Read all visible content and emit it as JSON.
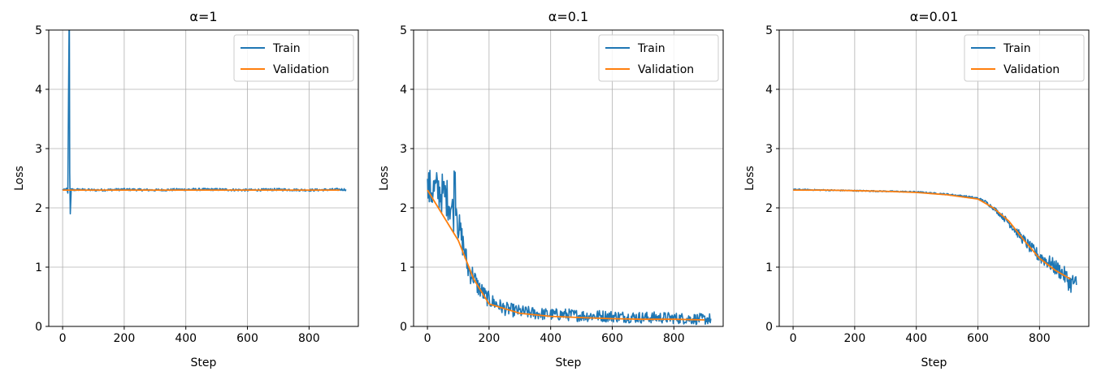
{
  "colors": {
    "train": "#1f77b4",
    "validation": "#ff7f0e",
    "grid": "#b0b0b0"
  },
  "chart_data": [
    {
      "type": "line",
      "title": "α=1",
      "xlabel": "Step",
      "ylabel": "Loss",
      "xlim": [
        -45,
        960
      ],
      "ylim": [
        0,
        5
      ],
      "xticks": [
        0,
        200,
        400,
        600,
        800
      ],
      "yticks": [
        0,
        1,
        2,
        3,
        4,
        5
      ],
      "grid": true,
      "legend": "top-right",
      "series": [
        {
          "name": "Train",
          "x": [
            0,
            5,
            10,
            14,
            17,
            19,
            21,
            22,
            23,
            25,
            28,
            35,
            50,
            100,
            200,
            300,
            400,
            500,
            600,
            700,
            800,
            900,
            920
          ],
          "y": [
            2.31,
            2.3,
            2.31,
            2.32,
            2.25,
            3.8,
            5.0,
            5.0,
            2.6,
            1.9,
            2.32,
            2.3,
            2.31,
            2.3,
            2.31,
            2.3,
            2.31,
            2.31,
            2.3,
            2.31,
            2.3,
            2.31,
            2.31
          ]
        },
        {
          "name": "Validation",
          "x": [
            0,
            100,
            200,
            300,
            400,
            500,
            600,
            700,
            800,
            900
          ],
          "y": [
            2.3,
            2.3,
            2.3,
            2.3,
            2.3,
            2.3,
            2.3,
            2.3,
            2.3,
            2.3
          ]
        }
      ]
    },
    {
      "type": "line",
      "title": "α=0.1",
      "xlabel": "Step",
      "ylabel": "Loss",
      "xlim": [
        -45,
        960
      ],
      "ylim": [
        0,
        5
      ],
      "xticks": [
        0,
        200,
        400,
        600,
        800
      ],
      "yticks": [
        0,
        1,
        2,
        3,
        4,
        5
      ],
      "grid": true,
      "legend": "top-right",
      "series": [
        {
          "name": "Train",
          "x": [
            0,
            20,
            40,
            60,
            75,
            85,
            88,
            92,
            100,
            110,
            120,
            130,
            140,
            150,
            160,
            175,
            190,
            200,
            250,
            300,
            350,
            400,
            450,
            500,
            550,
            600,
            650,
            700,
            750,
            800,
            850,
            900,
            920
          ],
          "y": [
            2.31,
            2.3,
            2.28,
            2.2,
            2.05,
            1.9,
            2.85,
            2.2,
            1.7,
            1.5,
            1.3,
            1.0,
            0.9,
            0.85,
            0.7,
            0.6,
            0.5,
            0.45,
            0.3,
            0.25,
            0.22,
            0.2,
            0.2,
            0.18,
            0.18,
            0.17,
            0.16,
            0.15,
            0.15,
            0.14,
            0.13,
            0.12,
            0.13
          ]
        },
        {
          "name": "Validation",
          "x": [
            0,
            100,
            150,
            200,
            300,
            400,
            500,
            600,
            700,
            800,
            900
          ],
          "y": [
            2.3,
            1.45,
            0.8,
            0.38,
            0.22,
            0.17,
            0.15,
            0.13,
            0.12,
            0.12,
            0.11
          ]
        }
      ]
    },
    {
      "type": "line",
      "title": "α=0.01",
      "xlabel": "Step",
      "ylabel": "Loss",
      "xlim": [
        -45,
        960
      ],
      "ylim": [
        0,
        5
      ],
      "xticks": [
        0,
        200,
        400,
        600,
        800
      ],
      "yticks": [
        0,
        1,
        2,
        3,
        4,
        5
      ],
      "grid": true,
      "legend": "top-right",
      "series": [
        {
          "name": "Train",
          "x": [
            0,
            100,
            200,
            300,
            400,
            450,
            500,
            550,
            600,
            625,
            650,
            675,
            700,
            725,
            750,
            775,
            800,
            825,
            850,
            875,
            890,
            900,
            910,
            920
          ],
          "y": [
            2.31,
            2.3,
            2.29,
            2.28,
            2.27,
            2.25,
            2.23,
            2.2,
            2.16,
            2.1,
            2.0,
            1.88,
            1.75,
            1.6,
            1.45,
            1.3,
            1.18,
            1.1,
            1.0,
            0.9,
            0.8,
            0.72,
            0.75,
            0.7
          ]
        },
        {
          "name": "Validation",
          "x": [
            0,
            100,
            200,
            300,
            400,
            500,
            600,
            650,
            700,
            750,
            800,
            850,
            900
          ],
          "y": [
            2.3,
            2.3,
            2.29,
            2.28,
            2.26,
            2.22,
            2.15,
            2.0,
            1.78,
            1.45,
            1.15,
            0.95,
            0.8
          ]
        }
      ]
    }
  ]
}
